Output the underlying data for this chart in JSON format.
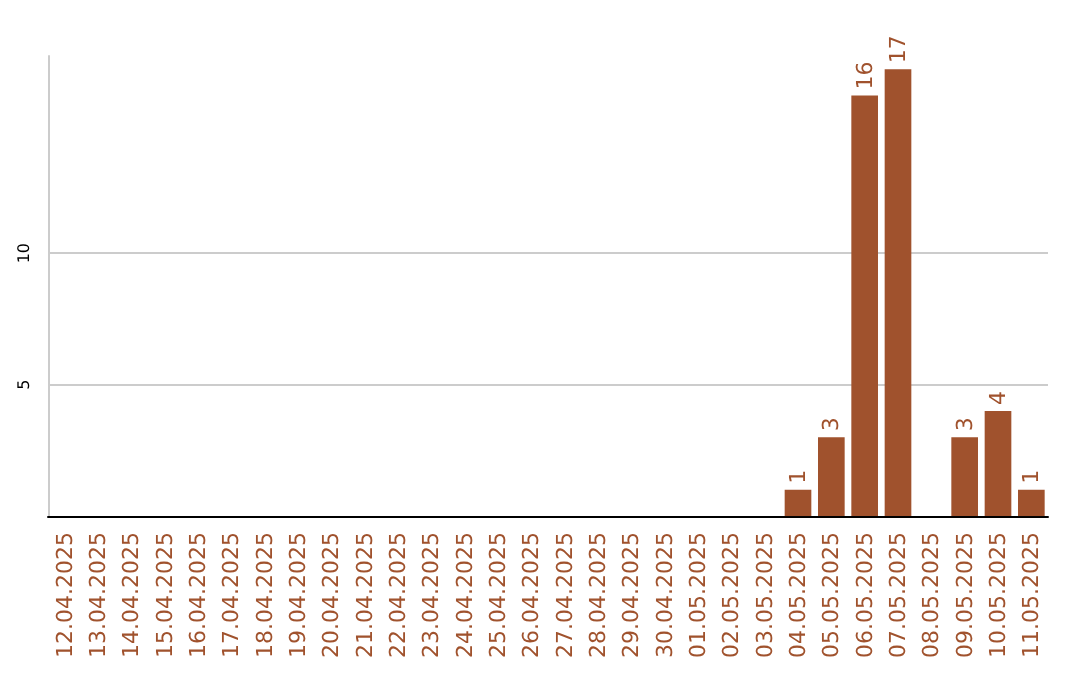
{
  "chart_data": {
    "type": "bar",
    "categories": [
      "12.04.2025",
      "13.04.2025",
      "14.04.2025",
      "15.04.2025",
      "16.04.2025",
      "17.04.2025",
      "18.04.2025",
      "19.04.2025",
      "20.04.2025",
      "21.04.2025",
      "22.04.2025",
      "23.04.2025",
      "24.04.2025",
      "25.04.2025",
      "26.04.2025",
      "27.04.2025",
      "28.04.2025",
      "29.04.2025",
      "30.04.2025",
      "01.05.2025",
      "02.05.2025",
      "03.05.2025",
      "04.05.2025",
      "05.05.2025",
      "06.05.2025",
      "07.05.2025",
      "08.05.2025",
      "09.05.2025",
      "10.05.2025",
      "11.05.2025"
    ],
    "values": [
      0,
      0,
      0,
      0,
      0,
      0,
      0,
      0,
      0,
      0,
      0,
      0,
      0,
      0,
      0,
      0,
      0,
      0,
      0,
      0,
      0,
      0,
      1,
      3,
      16,
      17,
      0,
      3,
      4,
      1
    ],
    "value_labels": [
      null,
      null,
      null,
      null,
      null,
      null,
      null,
      null,
      null,
      null,
      null,
      null,
      null,
      null,
      null,
      null,
      null,
      null,
      null,
      null,
      null,
      null,
      "1",
      "3",
      "16",
      "17",
      null,
      "3",
      "4",
      "1"
    ],
    "color": "#a0522d",
    "ylim": [
      0,
      17.5
    ],
    "yticks": [
      5,
      10
    ],
    "grid": "y"
  }
}
